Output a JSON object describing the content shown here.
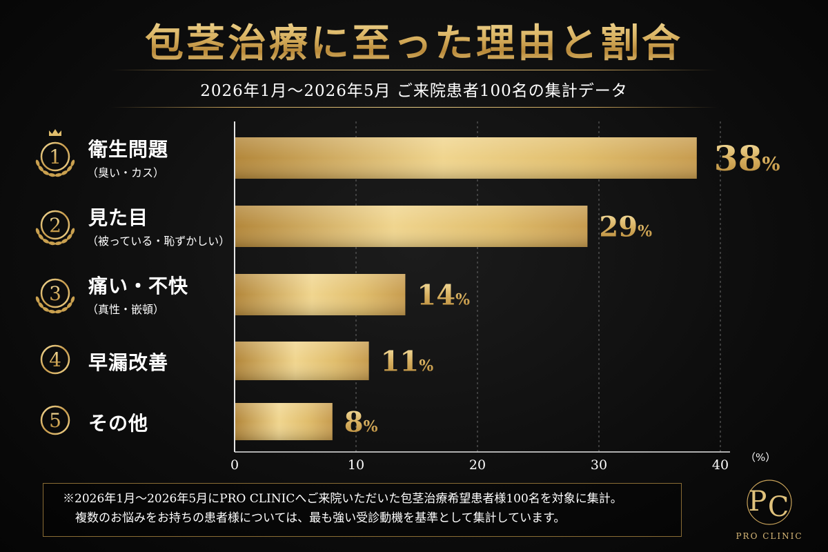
{
  "title": "包茎治療に至った理由と割合",
  "subtitle": "2026年1月〜2026年5月 ご来院患者100名の集計データ",
  "chart_data": {
    "type": "bar",
    "orientation": "horizontal",
    "categories": [
      {
        "rank": "1",
        "label": "衛生問題",
        "sub": "（臭い・カス）",
        "value": 38,
        "value_label": "38",
        "crown": true
      },
      {
        "rank": "2",
        "label": "見た目",
        "sub": "（被っている・恥ずかしい）",
        "value": 29,
        "value_label": "29",
        "crown": false
      },
      {
        "rank": "3",
        "label": "痛い・不快",
        "sub": "（真性・嵌頓）",
        "value": 14,
        "value_label": "14",
        "crown": false
      },
      {
        "rank": "4",
        "label": "早漏改善",
        "sub": "",
        "value": 11,
        "value_label": "11",
        "crown": false
      },
      {
        "rank": "5",
        "label": "その他",
        "sub": "",
        "value": 8,
        "value_label": "8",
        "crown": false
      }
    ],
    "value_suffix": "%",
    "xticks": [
      "0",
      "10",
      "20",
      "30",
      "40"
    ],
    "xlim": [
      0,
      40
    ],
    "xunit": "（%）",
    "grid": "vertical dashed"
  },
  "note": {
    "line1": "※2026年1月〜2026年5月にPRO CLINICへご来院いただいた包茎治療希望患者様100名を対象に集計。",
    "line2": "複数のお悩みをお持ちの患者様については、最も強い受診動機を基準として集計しています。"
  },
  "logo": {
    "monogram_left": "P",
    "monogram_right": "C",
    "text": "PRO CLINIC"
  },
  "colors": {
    "gold_light": "#f3dc97",
    "gold_mid": "#d4aa58",
    "gold_dark": "#a87c33",
    "background": "#0d0d0d"
  }
}
